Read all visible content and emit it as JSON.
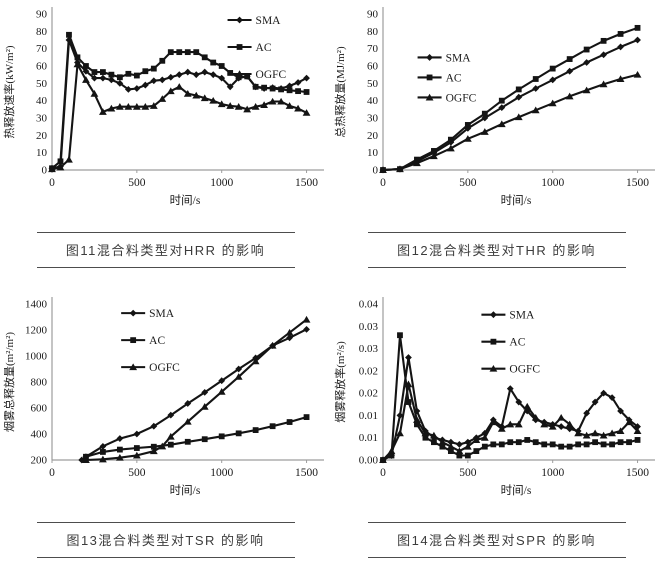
{
  "colors": {
    "ink": "#141414",
    "axis": "#9d9d9d",
    "tick_text": "#1a1a1a",
    "caption_text": "#3c3c3c",
    "rule": "#4d4d4d",
    "background": "#ffffff"
  },
  "legend_labels": [
    "SMA",
    "AC",
    "OGFC"
  ],
  "chart_data": [
    {
      "id": "hrr",
      "type": "line",
      "caption": "图11混合料类型对HRR 的影响",
      "xlabel": "时间/s",
      "ylabel": "热释放速率(kW/m²)",
      "xlim": [
        0,
        1500
      ],
      "xticks": [
        0,
        500,
        1000,
        1500
      ],
      "ylim": [
        0,
        90
      ],
      "yticks": [
        0,
        10,
        20,
        30,
        40,
        50,
        60,
        70,
        80,
        90
      ],
      "legend": {
        "fx": 0.66,
        "fy": 0.0,
        "gap": 27
      },
      "series": [
        {
          "name": "SMA",
          "marker": "diamond",
          "x": [
            0,
            50,
            100,
            150,
            200,
            250,
            300,
            350,
            400,
            450,
            500,
            550,
            600,
            650,
            700,
            750,
            800,
            850,
            900,
            950,
            1000,
            1050,
            1100,
            1150,
            1200,
            1250,
            1300,
            1350,
            1400,
            1450,
            1500
          ],
          "y": [
            1,
            2,
            75,
            62,
            57,
            53,
            53,
            52,
            50,
            46.5,
            47,
            49,
            51.5,
            52,
            53.5,
            55,
            56.5,
            55,
            56.5,
            55,
            53,
            48,
            53,
            54,
            48,
            47,
            47.5,
            47,
            48.5,
            50.5,
            53
          ]
        },
        {
          "name": "AC",
          "marker": "square",
          "x": [
            0,
            50,
            100,
            150,
            200,
            250,
            300,
            350,
            400,
            450,
            500,
            550,
            600,
            650,
            700,
            750,
            800,
            850,
            900,
            950,
            1000,
            1050,
            1100,
            1150,
            1200,
            1250,
            1300,
            1350,
            1400,
            1450,
            1500
          ],
          "y": [
            1,
            5,
            78,
            65,
            60,
            56.5,
            56.5,
            55,
            53.5,
            55.5,
            54.5,
            57,
            58.5,
            63,
            68,
            68,
            68,
            68,
            65,
            62,
            60,
            56,
            53.5,
            54,
            48,
            47.5,
            47,
            46.5,
            46,
            45.5,
            45
          ]
        },
        {
          "name": "OGFC",
          "marker": "triangle",
          "x": [
            0,
            50,
            100,
            150,
            200,
            250,
            300,
            350,
            400,
            450,
            500,
            550,
            600,
            650,
            700,
            750,
            800,
            850,
            900,
            950,
            1000,
            1050,
            1100,
            1150,
            1200,
            1250,
            1300,
            1350,
            1400,
            1450,
            1500
          ],
          "y": [
            0.5,
            1.5,
            6,
            61,
            52,
            44,
            33.5,
            35.5,
            36.5,
            36.5,
            36.5,
            36.5,
            37,
            41,
            45.5,
            48,
            44,
            43,
            41.5,
            40,
            38,
            37,
            36.5,
            35,
            36.5,
            37.5,
            39.5,
            39.5,
            37,
            35.5,
            33
          ]
        }
      ]
    },
    {
      "id": "thr",
      "type": "line",
      "caption": "图12混合料类型对THR 的影响",
      "xlabel": "时间/s",
      "ylabel": "总热释放量(MJ/m²)",
      "xlim": [
        0,
        1500
      ],
      "xticks": [
        0,
        500,
        1000,
        1500
      ],
      "ylim": [
        0,
        90
      ],
      "yticks": [
        0,
        10,
        20,
        30,
        40,
        50,
        60,
        70,
        80,
        90
      ],
      "legend": {
        "fx": 0.13,
        "fy": 0.24,
        "gap": 20
      },
      "series": [
        {
          "name": "SMA",
          "marker": "diamond",
          "x": [
            0,
            100,
            200,
            300,
            400,
            500,
            600,
            700,
            800,
            900,
            1000,
            1100,
            1200,
            1300,
            1400,
            1500
          ],
          "y": [
            0,
            0.5,
            5,
            10,
            16,
            24,
            30,
            36,
            42,
            47,
            52,
            57,
            62,
            66.5,
            71,
            75
          ]
        },
        {
          "name": "AC",
          "marker": "square",
          "x": [
            0,
            100,
            200,
            300,
            400,
            500,
            600,
            700,
            800,
            900,
            1000,
            1100,
            1200,
            1300,
            1400,
            1500
          ],
          "y": [
            0,
            0.5,
            6,
            11,
            17.5,
            26,
            32.5,
            40,
            46.5,
            52.5,
            58.5,
            64,
            69.5,
            74.5,
            78.5,
            82
          ]
        },
        {
          "name": "OGFC",
          "marker": "triangle",
          "x": [
            0,
            100,
            200,
            300,
            400,
            500,
            600,
            700,
            800,
            900,
            1000,
            1100,
            1200,
            1300,
            1400,
            1500
          ],
          "y": [
            0,
            0.5,
            4,
            8,
            12.5,
            18,
            22,
            26.5,
            30.5,
            34.5,
            38.5,
            42.5,
            46,
            49.5,
            52.5,
            55
          ]
        }
      ]
    },
    {
      "id": "tsr",
      "type": "line",
      "caption": "图13混合料类型对TSR 的影响",
      "xlabel": "时间/s",
      "ylabel": "烟雾总释放量(m²/m²)",
      "xlim": [
        0,
        1500
      ],
      "xticks": [
        0,
        500,
        1000,
        1500
      ],
      "ylim": [
        200,
        1400
      ],
      "yticks": [
        200,
        400,
        600,
        800,
        1000,
        1200,
        1400
      ],
      "legend": {
        "fx": 0.26,
        "fy": 0.02,
        "gap": 27
      },
      "series": [
        {
          "name": "SMA",
          "marker": "diamond",
          "x": [
            175,
            200,
            300,
            400,
            500,
            600,
            700,
            800,
            900,
            1000,
            1100,
            1200,
            1300,
            1400,
            1500
          ],
          "y": [
            200,
            225,
            305,
            365,
            400,
            460,
            545,
            635,
            720,
            810,
            900,
            985,
            1080,
            1140,
            1205
          ]
        },
        {
          "name": "AC",
          "marker": "square",
          "x": [
            200,
            300,
            400,
            500,
            600,
            700,
            800,
            900,
            1000,
            1100,
            1200,
            1300,
            1400,
            1500
          ],
          "y": [
            225,
            262,
            280,
            292,
            302,
            318,
            340,
            360,
            382,
            405,
            430,
            460,
            492,
            530
          ]
        },
        {
          "name": "OGFC",
          "marker": "triangle",
          "x": [
            200,
            300,
            400,
            500,
            600,
            650,
            700,
            800,
            900,
            1000,
            1100,
            1200,
            1300,
            1400,
            1500
          ],
          "y": [
            200,
            205,
            218,
            235,
            268,
            305,
            380,
            495,
            610,
            725,
            840,
            960,
            1080,
            1180,
            1280
          ]
        }
      ]
    },
    {
      "id": "spr",
      "type": "line",
      "caption": "图14混合料类型对SPR 的影响",
      "xlabel": "时间/s",
      "ylabel": "烟雾释放率(m²/s)",
      "xlim": [
        0,
        1500
      ],
      "xticks": [
        0,
        500,
        1000,
        1500
      ],
      "ylim": [
        0,
        0.035
      ],
      "yticks": [
        0,
        0.005,
        0.01,
        0.015,
        0.02,
        0.025,
        0.03,
        0.035
      ],
      "ytick_labels": [
        "0.00",
        "0.01",
        "0.01",
        "0.02",
        "0.02",
        "0.03",
        "0.03",
        "0.04"
      ],
      "legend": {
        "fx": 0.37,
        "fy": 0.03,
        "gap": 27
      },
      "series": [
        {
          "name": "SMA",
          "marker": "diamond",
          "x": [
            0,
            50,
            100,
            150,
            200,
            250,
            300,
            350,
            400,
            450,
            500,
            550,
            600,
            650,
            700,
            750,
            800,
            850,
            900,
            950,
            1000,
            1050,
            1100,
            1150,
            1200,
            1250,
            1300,
            1350,
            1400,
            1450,
            1500
          ],
          "y": [
            0,
            0.001,
            0.01,
            0.023,
            0.011,
            0.0065,
            0.005,
            0.0045,
            0.004,
            0.0035,
            0.004,
            0.005,
            0.006,
            0.009,
            0.0075,
            0.016,
            0.013,
            0.011,
            0.009,
            0.0085,
            0.008,
            0.0075,
            0.007,
            0.0065,
            0.0105,
            0.013,
            0.015,
            0.014,
            0.011,
            0.009,
            0.0075
          ]
        },
        {
          "name": "AC",
          "marker": "square",
          "x": [
            0,
            50,
            100,
            150,
            200,
            250,
            300,
            350,
            400,
            450,
            500,
            550,
            600,
            650,
            700,
            750,
            800,
            850,
            900,
            950,
            1000,
            1050,
            1100,
            1150,
            1200,
            1250,
            1300,
            1350,
            1400,
            1450,
            1500
          ],
          "y": [
            0,
            0.001,
            0.028,
            0.013,
            0.008,
            0.005,
            0.004,
            0.003,
            0.002,
            0.001,
            0.001,
            0.002,
            0.003,
            0.0035,
            0.0035,
            0.004,
            0.004,
            0.0045,
            0.004,
            0.0035,
            0.0035,
            0.003,
            0.003,
            0.0035,
            0.0035,
            0.004,
            0.0035,
            0.0035,
            0.004,
            0.004,
            0.0045
          ]
        },
        {
          "name": "OGFC",
          "marker": "triangle",
          "x": [
            0,
            50,
            100,
            150,
            200,
            250,
            300,
            350,
            400,
            450,
            500,
            550,
            600,
            650,
            700,
            750,
            800,
            850,
            900,
            950,
            1000,
            1050,
            1100,
            1150,
            1200,
            1250,
            1300,
            1350,
            1400,
            1450,
            1500
          ],
          "y": [
            0,
            0.002,
            0.006,
            0.017,
            0.009,
            0.006,
            0.0055,
            0.004,
            0.003,
            0.002,
            0.003,
            0.0045,
            0.005,
            0.0085,
            0.007,
            0.008,
            0.008,
            0.012,
            0.0095,
            0.008,
            0.0075,
            0.0095,
            0.008,
            0.006,
            0.0055,
            0.006,
            0.0055,
            0.006,
            0.0065,
            0.0085,
            0.0065
          ]
        }
      ]
    }
  ]
}
